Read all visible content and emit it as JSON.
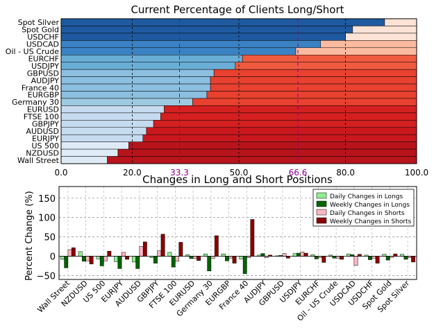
{
  "chart_data": [
    {
      "type": "bar",
      "orientation": "horizontal",
      "stacked": true,
      "title": "Current Percentage of Clients Long/Short",
      "xlim": [
        0,
        100
      ],
      "x_ticks": [
        "0.0",
        "20.0",
        "50.0",
        "80.0",
        "100.0"
      ],
      "x_tick_values": [
        0,
        20,
        50,
        80,
        100
      ],
      "reference_ticks": [
        "33.3",
        "66.6"
      ],
      "reference_values": [
        33.3,
        66.6
      ],
      "reference_color": "#8b008b",
      "grid": true,
      "categories": [
        "Spot Silver",
        "Spot Gold",
        "USDCHF",
        "USDCAD",
        "Oil - US Crude",
        "EURCHF",
        "USDJPY",
        "GBPUSD",
        "AUDJPY",
        "France 40",
        "EURGBP",
        "Germany 30",
        "EURUSD",
        "FTSE 100",
        "GBPJPY",
        "AUDUSD",
        "EURJPY",
        "US 500",
        "NZDUSD",
        "Wall Street"
      ],
      "long_pct": [
        91,
        82,
        80,
        73,
        66,
        51,
        49,
        43,
        42,
        42,
        41,
        37,
        29,
        28,
        26,
        24,
        23,
        19,
        16,
        13
      ],
      "long_colors": [
        "#1f5aa0",
        "#1f5aa0",
        "#1f5aa0",
        "#3a82c4",
        "#3a82c4",
        "#6aaed6",
        "#6aaed6",
        "#8cbfe0",
        "#8cbfe0",
        "#8cbfe0",
        "#8cbfe0",
        "#9ecae1",
        "#c6dbef",
        "#c6dbef",
        "#c6dbef",
        "#c6dbef",
        "#c6dbef",
        "#deebf7",
        "#deebf7",
        "#deebf7"
      ],
      "short_colors": [
        "#fde3d6",
        "#fde3d6",
        "#fde3d6",
        "#fcbba1",
        "#fcbba1",
        "#ef5b3f",
        "#ef5b3f",
        "#e8412f",
        "#e8412f",
        "#e8412f",
        "#e8412f",
        "#e8412f",
        "#d42020",
        "#d42020",
        "#d42020",
        "#c8181e",
        "#c8181e",
        "#b8141c",
        "#b8141c",
        "#b8141c"
      ]
    },
    {
      "type": "bar",
      "grouped": true,
      "title": "Changes in Long and Short Positions",
      "ylabel": "Percent Change (%)",
      "ylim": [
        -60,
        180
      ],
      "y_ticks": [
        "−50",
        "0",
        "50",
        "100",
        "150"
      ],
      "y_tick_values": [
        -50,
        0,
        50,
        100,
        150
      ],
      "grid": true,
      "legend_position": "top-right",
      "categories": [
        "Wall Street",
        "NZDUSD",
        "US 500",
        "EURJPY",
        "AUDUSD",
        "GBPJPY",
        "FTSE 100",
        "EURUSD",
        "Germany 30",
        "EURGBP",
        "France 40",
        "AUDJPY",
        "GBPUSD",
        "USDJPY",
        "EURCHF",
        "Oil - US Crude",
        "USDCAD",
        "USDCHF",
        "Spot Gold",
        "Spot Silver"
      ],
      "series": [
        {
          "name": "Daily Changes in Longs",
          "color": "#90ee90",
          "values": [
            -8,
            12,
            -7,
            -14,
            -15,
            -4,
            10,
            4,
            6,
            6,
            -7,
            3,
            1,
            7,
            4,
            3,
            6,
            3,
            5,
            5
          ]
        },
        {
          "name": "Weekly Changes in Longs",
          "color": "#006400",
          "values": [
            -30,
            -13,
            -25,
            -32,
            -32,
            -18,
            -28,
            -6,
            -38,
            -12,
            -45,
            7,
            2,
            8,
            -7,
            -5,
            4,
            -9,
            -10,
            -8
          ]
        },
        {
          "name": "Daily Changes in Shorts",
          "color": "#ffb6c1",
          "values": [
            17,
            -12,
            -12,
            10,
            25,
            14,
            -13,
            -6,
            -6,
            -5,
            -4,
            -4,
            7,
            11,
            -4,
            -5,
            -24,
            -5,
            -3,
            -4
          ]
        },
        {
          "name": "Weekly Changes in Shorts",
          "color": "#8b0000",
          "values": [
            22,
            -20,
            13,
            -8,
            37,
            57,
            36,
            -11,
            53,
            -18,
            95,
            3,
            -5,
            8,
            -16,
            -8,
            5,
            -18,
            6,
            -15
          ]
        }
      ]
    }
  ]
}
